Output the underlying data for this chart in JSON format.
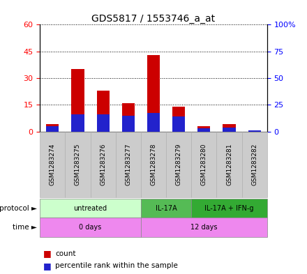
{
  "title": "GDS5817 / 1553746_a_at",
  "samples": [
    "GSM1283274",
    "GSM1283275",
    "GSM1283276",
    "GSM1283277",
    "GSM1283278",
    "GSM1283279",
    "GSM1283280",
    "GSM1283281",
    "GSM1283282"
  ],
  "count_values": [
    4.0,
    35.0,
    23.0,
    16.0,
    43.0,
    14.0,
    3.0,
    4.0,
    0.5
  ],
  "percentile_values": [
    5.0,
    16.0,
    16.0,
    15.0,
    17.5,
    14.0,
    3.0,
    4.0,
    0.8
  ],
  "left_ylim": [
    0,
    60
  ],
  "right_ylim": [
    0,
    100
  ],
  "left_yticks": [
    0,
    15,
    30,
    45,
    60
  ],
  "right_yticks": [
    0,
    25,
    50,
    75,
    100
  ],
  "right_yticklabels": [
    "0",
    "25",
    "50",
    "75",
    "100%"
  ],
  "bar_color": "#cc0000",
  "percentile_color": "#2222cc",
  "proto_groups": [
    {
      "label": "untreated",
      "start": 0,
      "end": 3,
      "color": "#ccffcc"
    },
    {
      "label": "IL-17A",
      "start": 4,
      "end": 5,
      "color": "#55bb55"
    },
    {
      "label": "IL-17A + IFN-g",
      "start": 6,
      "end": 8,
      "color": "#33aa33"
    }
  ],
  "time_groups": [
    {
      "label": "0 days",
      "start": 0,
      "end": 3,
      "color": "#ee88ee"
    },
    {
      "label": "12 days",
      "start": 4,
      "end": 8,
      "color": "#ee88ee"
    }
  ],
  "sample_bg_color": "#cccccc",
  "title_fontsize": 10
}
